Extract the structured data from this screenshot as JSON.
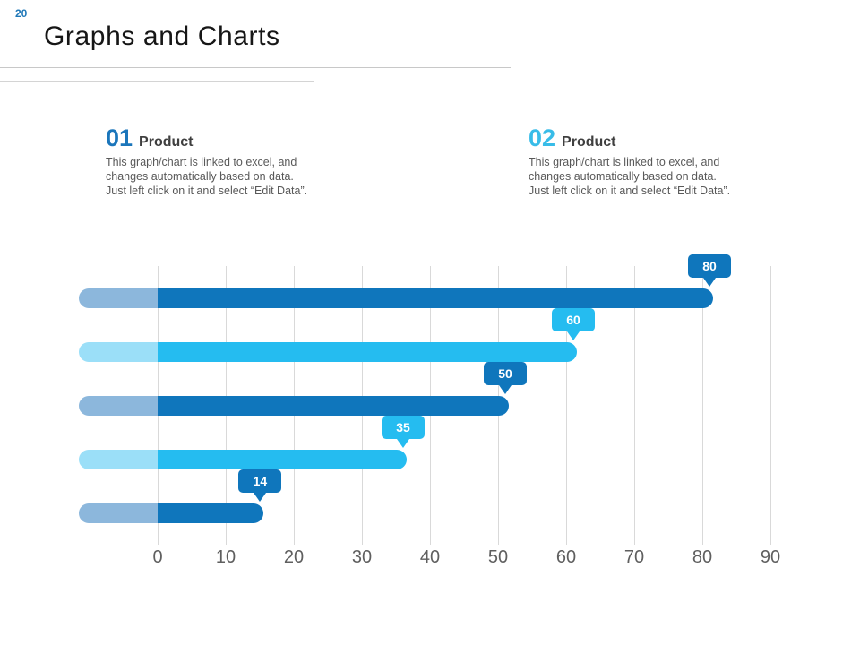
{
  "page": {
    "number": "20",
    "title": "Graphs and Charts"
  },
  "sections": [
    {
      "number": "01",
      "label": "Product",
      "description": "This graph/chart is linked to excel, and\nchanges automatically based on data.\nJust left click on it and select “Edit Data”.",
      "accent_color": "#1b76bb"
    },
    {
      "number": "02",
      "label": "Product",
      "description": "This graph/chart is linked to excel, and\nchanges automatically based on data.\nJust left click on it and select “Edit Data”.",
      "accent_color": "#38bce8"
    }
  ],
  "chart_data": {
    "type": "bar",
    "orientation": "horizontal",
    "title": "",
    "xlabel": "",
    "ylabel": "",
    "values": [
      80,
      60,
      50,
      35,
      14
    ],
    "data_labels": [
      "80",
      "60",
      "50",
      "35",
      "14"
    ],
    "x_ticks": [
      "0",
      "10",
      "20",
      "30",
      "40",
      "50",
      "60",
      "70",
      "80",
      "90"
    ],
    "xlim": [
      0,
      90
    ],
    "grid": true,
    "legend": false,
    "bar_colors": [
      "#0f76bc",
      "#25bcf0",
      "#0f76bc",
      "#25bcf0",
      "#0f76bc"
    ],
    "tail_colors": [
      "#8cb7dc",
      "#9bdff8",
      "#8cb7dc",
      "#9bdff8",
      "#8cb7dc"
    ],
    "label_text_color": "#ffffff",
    "axis_text_color": "#5f5f5f",
    "gridline_color": "#d9d9d9"
  }
}
